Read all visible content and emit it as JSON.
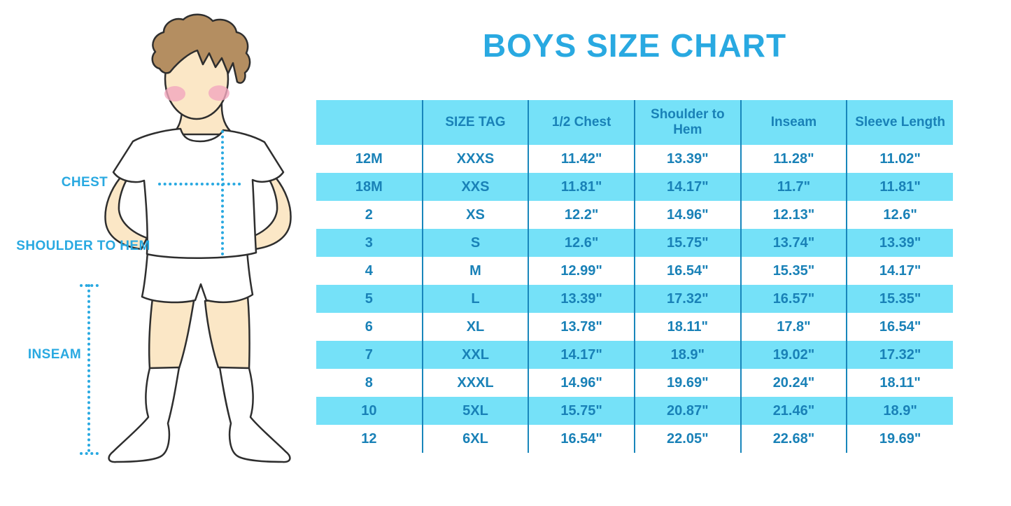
{
  "title": "BOYS SIZE CHART",
  "figure_labels": {
    "chest": "CHEST",
    "shoulder_to_hem": "SHOULDER TO HEM",
    "inseam": "INSEAM"
  },
  "colors": {
    "accent_blue": "#29A9E1",
    "table_text_blue": "#1981B7",
    "band_cyan": "#75E1F8",
    "column_separator_blue": "#1886BB",
    "skin": "#FBE7C6",
    "hair_brown": "#B48E61",
    "cheek_pink": "#F2A8BE"
  },
  "chart_data": {
    "type": "table",
    "title": "BOYS SIZE CHART",
    "columns": [
      "",
      "SIZE TAG",
      "1/2 Chest",
      "Shoulder to Hem",
      "Inseam",
      "Sleeve Length"
    ],
    "rows": [
      [
        "12M",
        "XXXS",
        "11.42\"",
        "13.39\"",
        "11.28\"",
        "11.02\""
      ],
      [
        "18M",
        "XXS",
        "11.81\"",
        "14.17\"",
        "11.7\"",
        "11.81\""
      ],
      [
        "2",
        "XS",
        "12.2\"",
        "14.96\"",
        "12.13\"",
        "12.6\""
      ],
      [
        "3",
        "S",
        "12.6\"",
        "15.75\"",
        "13.74\"",
        "13.39\""
      ],
      [
        "4",
        "M",
        "12.99\"",
        "16.54\"",
        "15.35\"",
        "14.17\""
      ],
      [
        "5",
        "L",
        "13.39\"",
        "17.32\"",
        "16.57\"",
        "15.35\""
      ],
      [
        "6",
        "XL",
        "13.78\"",
        "18.11\"",
        "17.8\"",
        "16.54\""
      ],
      [
        "7",
        "XXL",
        "14.17\"",
        "18.9\"",
        "19.02\"",
        "17.32\""
      ],
      [
        "8",
        "XXXL",
        "14.96\"",
        "19.69\"",
        "20.24\"",
        "18.11\""
      ],
      [
        "10",
        "5XL",
        "15.75\"",
        "20.87\"",
        "21.46\"",
        "18.9\""
      ],
      [
        "12",
        "6XL",
        "16.54\"",
        "22.05\"",
        "22.68\"",
        "19.69\""
      ]
    ],
    "layout": {
      "alternating_row_colors": [
        "#FFFFFF",
        "#75E1F8"
      ],
      "header_background": "#75E1F8",
      "grid": "vertical-separators-only"
    }
  }
}
